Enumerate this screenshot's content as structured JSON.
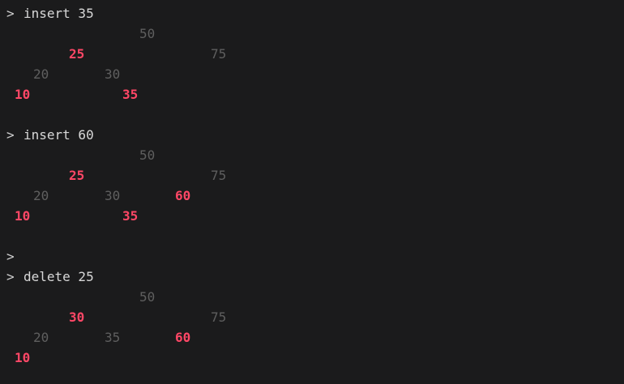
{
  "colors": {
    "background": "#1b1b1c",
    "text": "#d8d8d8",
    "black_node": "#5f5f5f",
    "red_node": "#ff4766"
  },
  "prompt_symbol": ">",
  "commands": [
    "insert 35",
    "insert 60",
    "",
    "delete 25"
  ],
  "trees": [
    {
      "rows": [
        [
          {
            "key": "50",
            "color": "black"
          }
        ],
        [
          {
            "key": "25",
            "color": "red"
          },
          {
            "key": "75",
            "color": "black"
          }
        ],
        [
          {
            "key": "20",
            "color": "black"
          },
          {
            "key": "30",
            "color": "black"
          }
        ],
        [
          {
            "key": "10",
            "color": "red"
          },
          {
            "key": "35",
            "color": "red"
          }
        ]
      ]
    },
    {
      "rows": [
        [
          {
            "key": "50",
            "color": "black"
          }
        ],
        [
          {
            "key": "25",
            "color": "red"
          },
          {
            "key": "75",
            "color": "black"
          }
        ],
        [
          {
            "key": "20",
            "color": "black"
          },
          {
            "key": "30",
            "color": "black"
          },
          {
            "key": "60",
            "color": "red"
          }
        ],
        [
          {
            "key": "10",
            "color": "red"
          },
          {
            "key": "35",
            "color": "red"
          }
        ]
      ]
    },
    {
      "rows": [
        [
          {
            "key": "50",
            "color": "black"
          }
        ],
        [
          {
            "key": "30",
            "color": "red"
          },
          {
            "key": "75",
            "color": "black"
          }
        ],
        [
          {
            "key": "20",
            "color": "black"
          },
          {
            "key": "35",
            "color": "black"
          },
          {
            "key": "60",
            "color": "red"
          }
        ],
        [
          {
            "key": "10",
            "color": "red"
          }
        ]
      ]
    }
  ]
}
